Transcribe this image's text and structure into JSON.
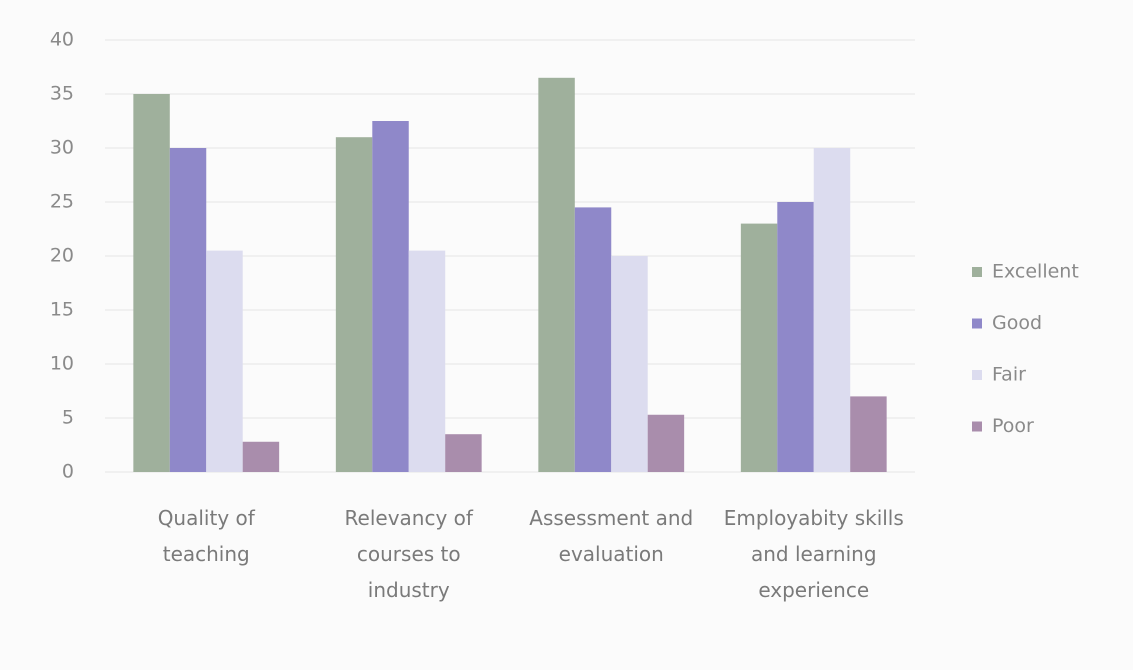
{
  "chart_data": {
    "type": "bar",
    "categories": [
      "Quality of teaching",
      "Relevancy of courses to industry",
      "Assessment and evaluation",
      "Employabity skills and learning experience"
    ],
    "series": [
      {
        "name": "Excellent",
        "color": "#9fb09c",
        "values": [
          35,
          31,
          36.5,
          23
        ]
      },
      {
        "name": "Good",
        "color": "#8f88c9",
        "values": [
          30,
          32.5,
          24.5,
          25
        ]
      },
      {
        "name": "Fair",
        "color": "#dcdcef",
        "values": [
          20.5,
          20.5,
          20,
          30
        ]
      },
      {
        "name": "Poor",
        "color": "#a98dac",
        "values": [
          2.8,
          3.5,
          5.3,
          7
        ]
      }
    ],
    "ylim": [
      0,
      40
    ],
    "yticks": [
      0,
      5,
      10,
      15,
      20,
      25,
      30,
      35,
      40
    ],
    "grid": true,
    "legend": "right"
  }
}
